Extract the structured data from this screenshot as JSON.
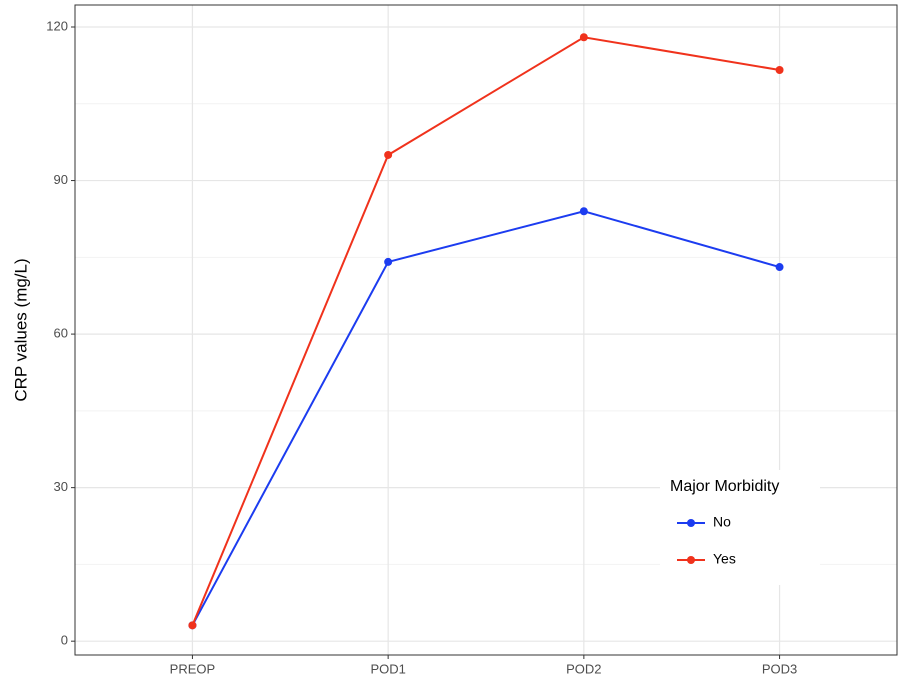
{
  "chart_data": {
    "type": "line",
    "categories": [
      "PREOP",
      "POD1",
      "POD2",
      "POD3"
    ],
    "series": [
      {
        "name": "No",
        "color": "#1c3cf0",
        "values": [
          3.1,
          74.1,
          84.0,
          73.1
        ]
      },
      {
        "name": "Yes",
        "color": "#f0321c",
        "values": [
          3.1,
          95.0,
          118.0,
          111.6
        ]
      }
    ],
    "ylabel": "CRP values (mg/L)",
    "ylim": [
      -2.7,
      124.3
    ],
    "yticks": [
      0,
      30,
      60,
      90,
      120
    ],
    "yminor": [
      15,
      45,
      75,
      105
    ],
    "grid": true,
    "legend": {
      "title": "Major Morbidity",
      "position": "bottom-right"
    }
  }
}
